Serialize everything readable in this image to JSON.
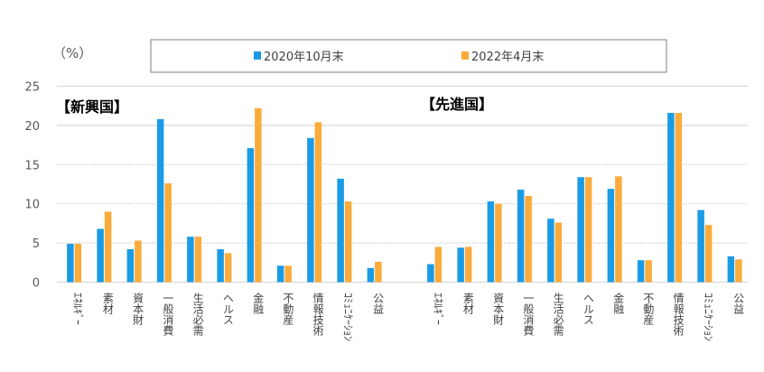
{
  "chart_data": {
    "type": "bar",
    "ylabel": "（%）",
    "ylim": [
      0,
      25
    ],
    "yticks": [
      0,
      5,
      10,
      15,
      20,
      25
    ],
    "grid": true,
    "legend_position": "top",
    "colors": {
      "s2020": "#1a9be6",
      "s2022": "#fbab3a",
      "grid": "#d9d9d9"
    },
    "groups": [
      {
        "title": "【新興国】",
        "categories": [
          "ｴﾈﾙｷﾞｰ",
          "素材",
          "資本財",
          "一般消費",
          "生活必需",
          "ヘルス",
          "金融",
          "不動産",
          "情報技術",
          "ｺﾐｭﾆｹｰｼｮﾝ",
          "公益"
        ],
        "series": [
          {
            "name": "2020年10月末",
            "values": [
              4.9,
              6.8,
              4.2,
              20.8,
              5.8,
              4.2,
              17.1,
              2.1,
              18.4,
              13.2,
              1.8
            ]
          },
          {
            "name": "2022年4月末",
            "values": [
              4.9,
              9.0,
              5.3,
              12.6,
              5.8,
              3.7,
              22.2,
              2.1,
              20.4,
              10.3,
              2.6
            ]
          }
        ]
      },
      {
        "title": "【先進国】",
        "categories": [
          "ｴﾈﾙｷﾞｰ",
          "素材",
          "資本財",
          "一般消費",
          "生活必需",
          "ヘルス",
          "金融",
          "不動産",
          "情報技術",
          "ｺﾐｭﾆｹｰｼｮﾝ",
          "公益"
        ],
        "series": [
          {
            "name": "2020年10月末",
            "values": [
              2.3,
              4.4,
              10.3,
              11.8,
              8.1,
              13.4,
              11.9,
              2.8,
              21.6,
              9.2,
              3.3
            ]
          },
          {
            "name": "2022年4月末",
            "values": [
              4.5,
              4.5,
              10.0,
              11.0,
              7.6,
              13.4,
              13.5,
              2.8,
              21.6,
              7.3,
              2.9
            ]
          }
        ]
      }
    ],
    "legend": [
      "2020年10月末",
      "2022年4月末"
    ]
  }
}
